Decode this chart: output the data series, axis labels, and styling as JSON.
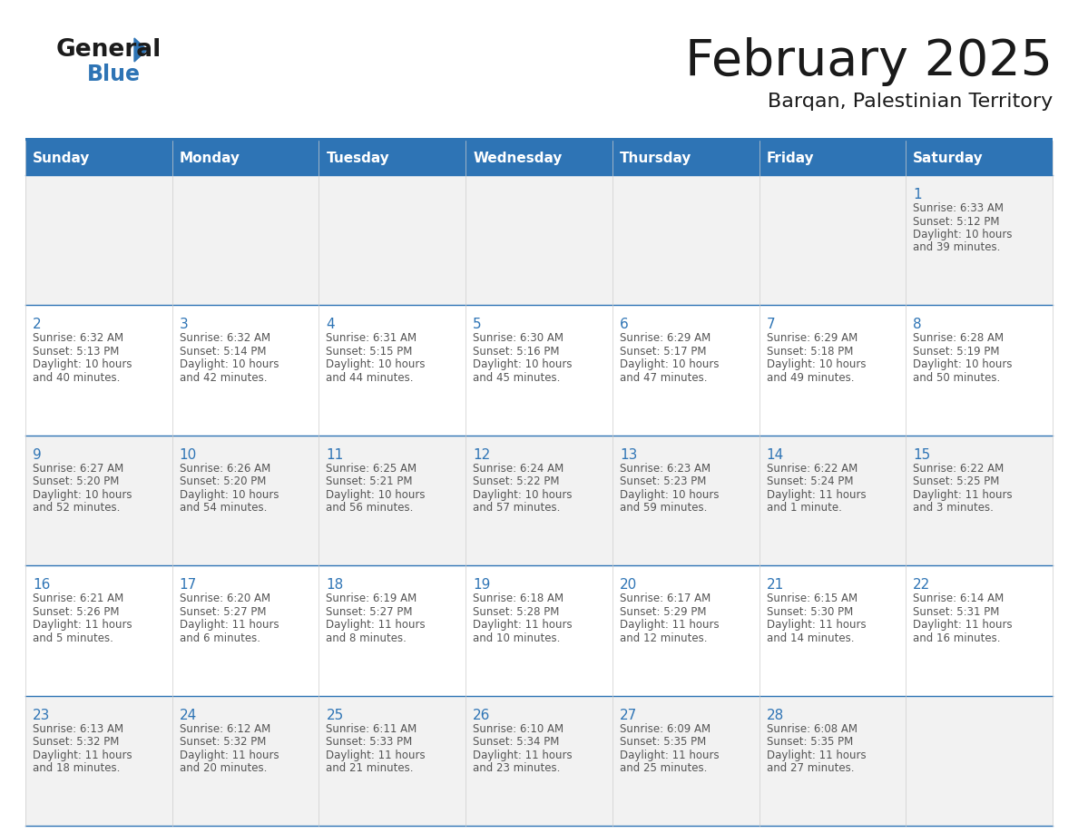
{
  "title": "February 2025",
  "subtitle": "Barqan, Palestinian Territory",
  "header_bg_color": "#2E74B5",
  "header_text_color": "#FFFFFF",
  "cell_bg_row0": "#F2F2F2",
  "cell_bg_row1": "#FFFFFF",
  "cell_text_color": "#555555",
  "day_number_color": "#2E74B5",
  "days_of_week": [
    "Sunday",
    "Monday",
    "Tuesday",
    "Wednesday",
    "Thursday",
    "Friday",
    "Saturday"
  ],
  "title_color": "#1a1a1a",
  "subtitle_color": "#1a1a1a",
  "border_color": "#2E74B5",
  "week_rows": [
    {
      "days": [
        {
          "day": null,
          "sunrise": null,
          "sunset": null,
          "daylight_line1": null,
          "daylight_line2": null
        },
        {
          "day": null,
          "sunrise": null,
          "sunset": null,
          "daylight_line1": null,
          "daylight_line2": null
        },
        {
          "day": null,
          "sunrise": null,
          "sunset": null,
          "daylight_line1": null,
          "daylight_line2": null
        },
        {
          "day": null,
          "sunrise": null,
          "sunset": null,
          "daylight_line1": null,
          "daylight_line2": null
        },
        {
          "day": null,
          "sunrise": null,
          "sunset": null,
          "daylight_line1": null,
          "daylight_line2": null
        },
        {
          "day": null,
          "sunrise": null,
          "sunset": null,
          "daylight_line1": null,
          "daylight_line2": null
        },
        {
          "day": 1,
          "sunrise": "Sunrise: 6:33 AM",
          "sunset": "Sunset: 5:12 PM",
          "daylight_line1": "Daylight: 10 hours",
          "daylight_line2": "and 39 minutes."
        }
      ]
    },
    {
      "days": [
        {
          "day": 2,
          "sunrise": "Sunrise: 6:32 AM",
          "sunset": "Sunset: 5:13 PM",
          "daylight_line1": "Daylight: 10 hours",
          "daylight_line2": "and 40 minutes."
        },
        {
          "day": 3,
          "sunrise": "Sunrise: 6:32 AM",
          "sunset": "Sunset: 5:14 PM",
          "daylight_line1": "Daylight: 10 hours",
          "daylight_line2": "and 42 minutes."
        },
        {
          "day": 4,
          "sunrise": "Sunrise: 6:31 AM",
          "sunset": "Sunset: 5:15 PM",
          "daylight_line1": "Daylight: 10 hours",
          "daylight_line2": "and 44 minutes."
        },
        {
          "day": 5,
          "sunrise": "Sunrise: 6:30 AM",
          "sunset": "Sunset: 5:16 PM",
          "daylight_line1": "Daylight: 10 hours",
          "daylight_line2": "and 45 minutes."
        },
        {
          "day": 6,
          "sunrise": "Sunrise: 6:29 AM",
          "sunset": "Sunset: 5:17 PM",
          "daylight_line1": "Daylight: 10 hours",
          "daylight_line2": "and 47 minutes."
        },
        {
          "day": 7,
          "sunrise": "Sunrise: 6:29 AM",
          "sunset": "Sunset: 5:18 PM",
          "daylight_line1": "Daylight: 10 hours",
          "daylight_line2": "and 49 minutes."
        },
        {
          "day": 8,
          "sunrise": "Sunrise: 6:28 AM",
          "sunset": "Sunset: 5:19 PM",
          "daylight_line1": "Daylight: 10 hours",
          "daylight_line2": "and 50 minutes."
        }
      ]
    },
    {
      "days": [
        {
          "day": 9,
          "sunrise": "Sunrise: 6:27 AM",
          "sunset": "Sunset: 5:20 PM",
          "daylight_line1": "Daylight: 10 hours",
          "daylight_line2": "and 52 minutes."
        },
        {
          "day": 10,
          "sunrise": "Sunrise: 6:26 AM",
          "sunset": "Sunset: 5:20 PM",
          "daylight_line1": "Daylight: 10 hours",
          "daylight_line2": "and 54 minutes."
        },
        {
          "day": 11,
          "sunrise": "Sunrise: 6:25 AM",
          "sunset": "Sunset: 5:21 PM",
          "daylight_line1": "Daylight: 10 hours",
          "daylight_line2": "and 56 minutes."
        },
        {
          "day": 12,
          "sunrise": "Sunrise: 6:24 AM",
          "sunset": "Sunset: 5:22 PM",
          "daylight_line1": "Daylight: 10 hours",
          "daylight_line2": "and 57 minutes."
        },
        {
          "day": 13,
          "sunrise": "Sunrise: 6:23 AM",
          "sunset": "Sunset: 5:23 PM",
          "daylight_line1": "Daylight: 10 hours",
          "daylight_line2": "and 59 minutes."
        },
        {
          "day": 14,
          "sunrise": "Sunrise: 6:22 AM",
          "sunset": "Sunset: 5:24 PM",
          "daylight_line1": "Daylight: 11 hours",
          "daylight_line2": "and 1 minute."
        },
        {
          "day": 15,
          "sunrise": "Sunrise: 6:22 AM",
          "sunset": "Sunset: 5:25 PM",
          "daylight_line1": "Daylight: 11 hours",
          "daylight_line2": "and 3 minutes."
        }
      ]
    },
    {
      "days": [
        {
          "day": 16,
          "sunrise": "Sunrise: 6:21 AM",
          "sunset": "Sunset: 5:26 PM",
          "daylight_line1": "Daylight: 11 hours",
          "daylight_line2": "and 5 minutes."
        },
        {
          "day": 17,
          "sunrise": "Sunrise: 6:20 AM",
          "sunset": "Sunset: 5:27 PM",
          "daylight_line1": "Daylight: 11 hours",
          "daylight_line2": "and 6 minutes."
        },
        {
          "day": 18,
          "sunrise": "Sunrise: 6:19 AM",
          "sunset": "Sunset: 5:27 PM",
          "daylight_line1": "Daylight: 11 hours",
          "daylight_line2": "and 8 minutes."
        },
        {
          "day": 19,
          "sunrise": "Sunrise: 6:18 AM",
          "sunset": "Sunset: 5:28 PM",
          "daylight_line1": "Daylight: 11 hours",
          "daylight_line2": "and 10 minutes."
        },
        {
          "day": 20,
          "sunrise": "Sunrise: 6:17 AM",
          "sunset": "Sunset: 5:29 PM",
          "daylight_line1": "Daylight: 11 hours",
          "daylight_line2": "and 12 minutes."
        },
        {
          "day": 21,
          "sunrise": "Sunrise: 6:15 AM",
          "sunset": "Sunset: 5:30 PM",
          "daylight_line1": "Daylight: 11 hours",
          "daylight_line2": "and 14 minutes."
        },
        {
          "day": 22,
          "sunrise": "Sunrise: 6:14 AM",
          "sunset": "Sunset: 5:31 PM",
          "daylight_line1": "Daylight: 11 hours",
          "daylight_line2": "and 16 minutes."
        }
      ]
    },
    {
      "days": [
        {
          "day": 23,
          "sunrise": "Sunrise: 6:13 AM",
          "sunset": "Sunset: 5:32 PM",
          "daylight_line1": "Daylight: 11 hours",
          "daylight_line2": "and 18 minutes."
        },
        {
          "day": 24,
          "sunrise": "Sunrise: 6:12 AM",
          "sunset": "Sunset: 5:32 PM",
          "daylight_line1": "Daylight: 11 hours",
          "daylight_line2": "and 20 minutes."
        },
        {
          "day": 25,
          "sunrise": "Sunrise: 6:11 AM",
          "sunset": "Sunset: 5:33 PM",
          "daylight_line1": "Daylight: 11 hours",
          "daylight_line2": "and 21 minutes."
        },
        {
          "day": 26,
          "sunrise": "Sunrise: 6:10 AM",
          "sunset": "Sunset: 5:34 PM",
          "daylight_line1": "Daylight: 11 hours",
          "daylight_line2": "and 23 minutes."
        },
        {
          "day": 27,
          "sunrise": "Sunrise: 6:09 AM",
          "sunset": "Sunset: 5:35 PM",
          "daylight_line1": "Daylight: 11 hours",
          "daylight_line2": "and 25 minutes."
        },
        {
          "day": 28,
          "sunrise": "Sunrise: 6:08 AM",
          "sunset": "Sunset: 5:35 PM",
          "daylight_line1": "Daylight: 11 hours",
          "daylight_line2": "and 27 minutes."
        },
        {
          "day": null,
          "sunrise": null,
          "sunset": null,
          "daylight_line1": null,
          "daylight_line2": null
        }
      ]
    }
  ]
}
